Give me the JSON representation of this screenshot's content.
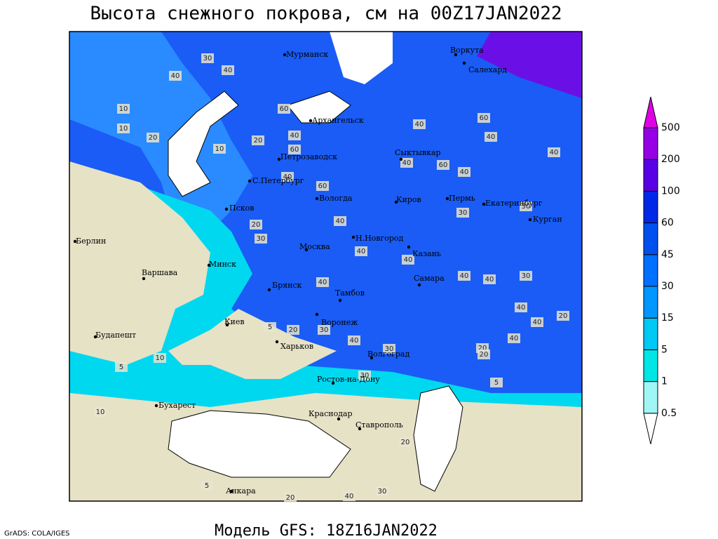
{
  "title": "Высота снежного покрова, см на 00Z17JAN2022",
  "footer": "Модель GFS: 18Z16JAN2022",
  "credit": "GrADS: COLA/IGES",
  "cities": [
    "Мурманск",
    "Воркута",
    "Салехард",
    "Архангельск",
    "Сыктывкар",
    "Петрозаводск",
    "С.Петербург",
    "Вологда",
    "Киров",
    "Пермь",
    "Екатеринбург",
    "Курган",
    "Псков",
    "Н.Новгород",
    "Москва",
    "Казань",
    "Берлин",
    "Минск",
    "Варшава",
    "Брянск",
    "Тамбов",
    "Самара",
    "Киев",
    "Воронеж",
    "Харьков",
    "Будапешт",
    "Волгоград",
    "Ростов-на-Дону",
    "Бухарест",
    "Краснодар",
    "Ставрополь",
    "Анкара"
  ],
  "legend": {
    "levels": [
      0.5,
      1,
      5,
      15,
      30,
      45,
      60,
      100,
      200,
      500
    ],
    "colors": [
      "#ffffff",
      "#a0f5f5",
      "#00e6e6",
      "#00c8f5",
      "#0096ff",
      "#0070ff",
      "#0050f0",
      "#0028e6",
      "#5a00e6",
      "#9600e6",
      "#e000e6"
    ]
  },
  "contour_labels": [
    10,
    60,
    30,
    40,
    40,
    20,
    10,
    40,
    20,
    10,
    40,
    60,
    60,
    40,
    40,
    60,
    40,
    40,
    20,
    30,
    30,
    60,
    40,
    40,
    30,
    40,
    40,
    40,
    40,
    40,
    40,
    40,
    20,
    40,
    30,
    20,
    5,
    20,
    30,
    40,
    30,
    20,
    5,
    10,
    10,
    5,
    30,
    20,
    40,
    5,
    30,
    20
  ]
}
